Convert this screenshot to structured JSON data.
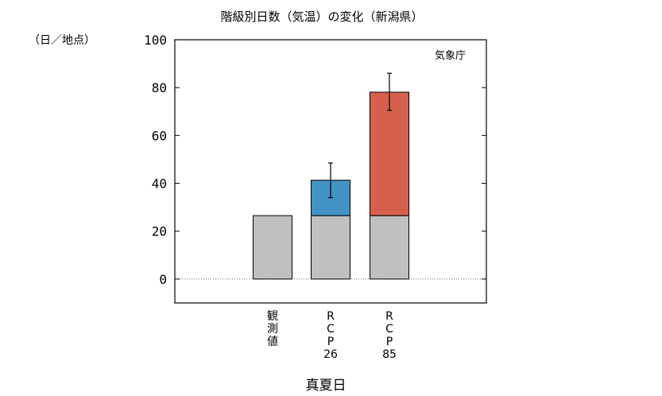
{
  "chart_data": {
    "type": "bar",
    "title": "階級別日数（気温）の変化（新潟県）",
    "unit_label": "（日／地点）",
    "source": "気象庁",
    "xlabel": "真夏日",
    "categories": [
      "観測値",
      "RCP26",
      "RCP85"
    ],
    "category_tick_lines": [
      [
        "観",
        "測",
        "値"
      ],
      [
        "R",
        "C",
        "P",
        "26"
      ],
      [
        "R",
        "C",
        "P",
        "85"
      ]
    ],
    "ylim": [
      -10,
      100
    ],
    "yticks": [
      0,
      20,
      40,
      60,
      80,
      100
    ],
    "baseline_value": 26.5,
    "series": [
      {
        "name": "",
        "color": "#c0c0c0",
        "values": [
          26.5,
          26.5,
          26.5
        ]
      },
      {
        "name": "",
        "color": "",
        "values": [
          0,
          14.8,
          51.6
        ]
      }
    ],
    "change_colors": [
      "",
      "#4393c3",
      "#d6604d"
    ],
    "error_bars": [
      null,
      [
        34.0,
        48.5
      ],
      [
        70.5,
        86.0
      ]
    ],
    "zero_line": "dotted",
    "grid": false,
    "legend": "none"
  }
}
